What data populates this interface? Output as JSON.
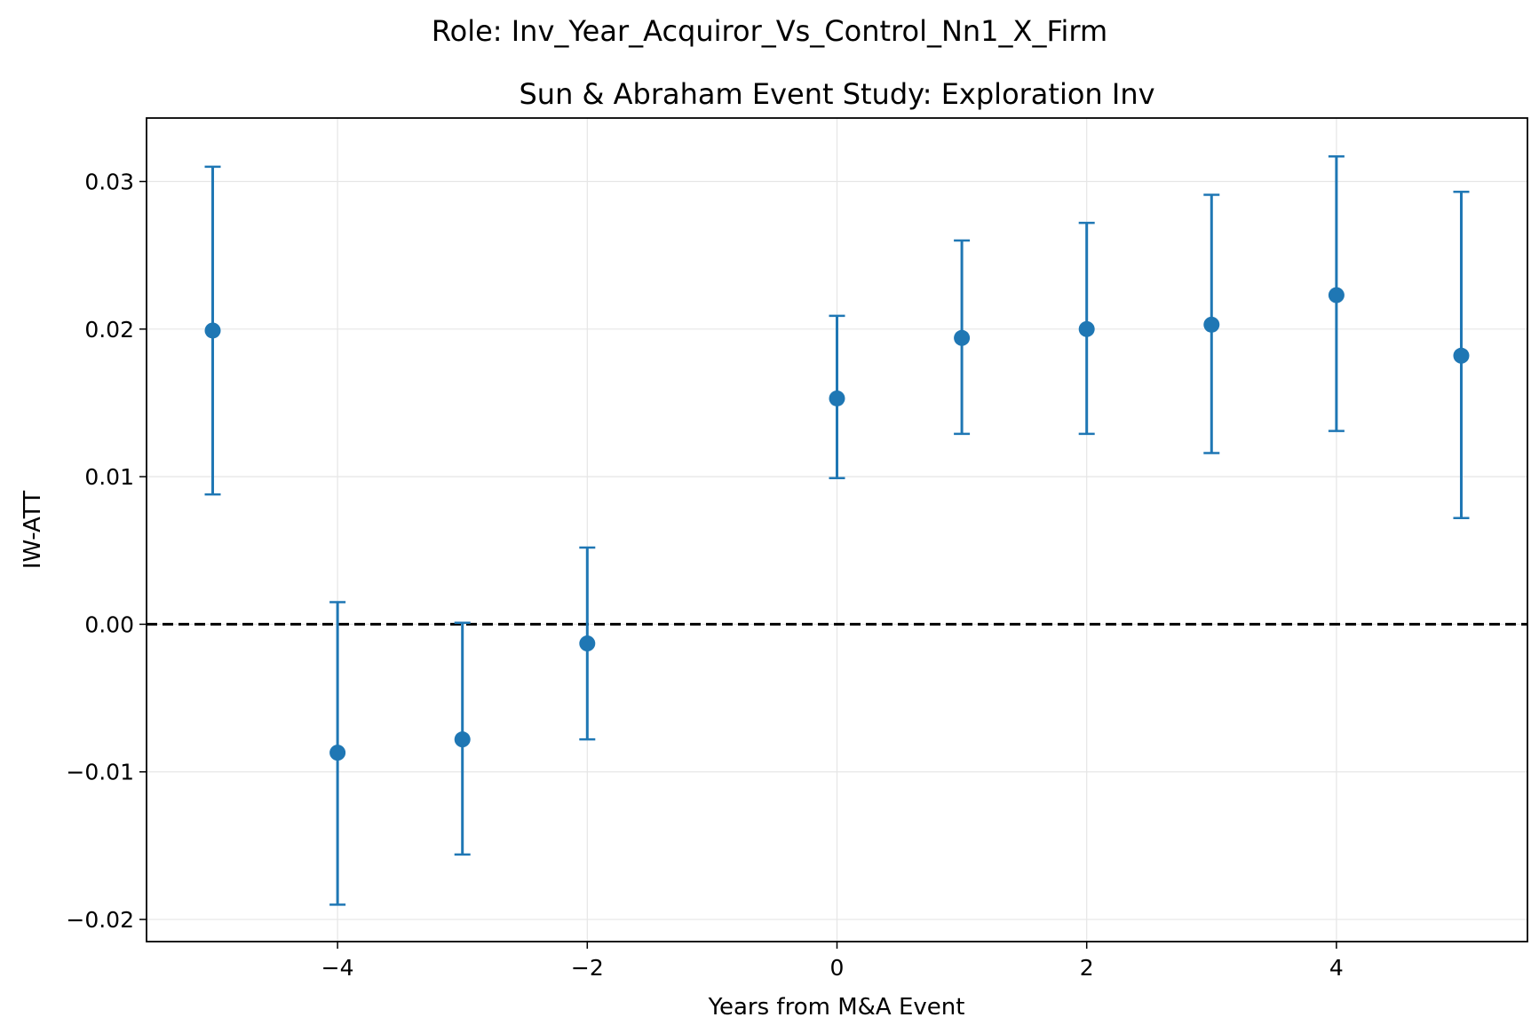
{
  "suptitle": "Role: Inv_Year_Acquiror_Vs_Control_Nn1_X_Firm",
  "chart_data": {
    "type": "scatter",
    "title": "Sun & Abraham Event Study: Exploration Inv",
    "xlabel": "Years from M&A Event",
    "ylabel": "IW-ATT",
    "xlim": [
      -5.53,
      5.53
    ],
    "ylim": [
      -0.0215,
      0.0343
    ],
    "xticks": [
      -4,
      -2,
      0,
      2,
      4
    ],
    "xtick_labels": [
      "−4",
      "−2",
      "0",
      "2",
      "4"
    ],
    "yticks": [
      -0.02,
      -0.01,
      0.0,
      0.01,
      0.02,
      0.03
    ],
    "ytick_labels": [
      "−0.02",
      "−0.01",
      "0.00",
      "0.01",
      "0.02",
      "0.03"
    ],
    "grid": true,
    "reference_line": {
      "y": 0,
      "style": "dashed",
      "color": "#000000"
    },
    "series": [
      {
        "color": "#1f77b4",
        "points": [
          {
            "x": -5,
            "y": 0.0199,
            "lower": 0.0088,
            "upper": 0.031
          },
          {
            "x": -4,
            "y": -0.0087,
            "lower": -0.019,
            "upper": 0.0015
          },
          {
            "x": -3,
            "y": -0.0078,
            "lower": -0.0156,
            "upper": 0.0001
          },
          {
            "x": -2,
            "y": -0.0013,
            "lower": -0.0078,
            "upper": 0.0052
          },
          {
            "x": 0,
            "y": 0.0153,
            "lower": 0.0099,
            "upper": 0.0209
          },
          {
            "x": 1,
            "y": 0.0194,
            "lower": 0.0129,
            "upper": 0.026
          },
          {
            "x": 2,
            "y": 0.02,
            "lower": 0.0129,
            "upper": 0.0272
          },
          {
            "x": 3,
            "y": 0.0203,
            "lower": 0.0116,
            "upper": 0.0291
          },
          {
            "x": 4,
            "y": 0.0223,
            "lower": 0.0131,
            "upper": 0.0317
          },
          {
            "x": 5,
            "y": 0.0182,
            "lower": 0.0072,
            "upper": 0.0293
          }
        ]
      }
    ]
  }
}
